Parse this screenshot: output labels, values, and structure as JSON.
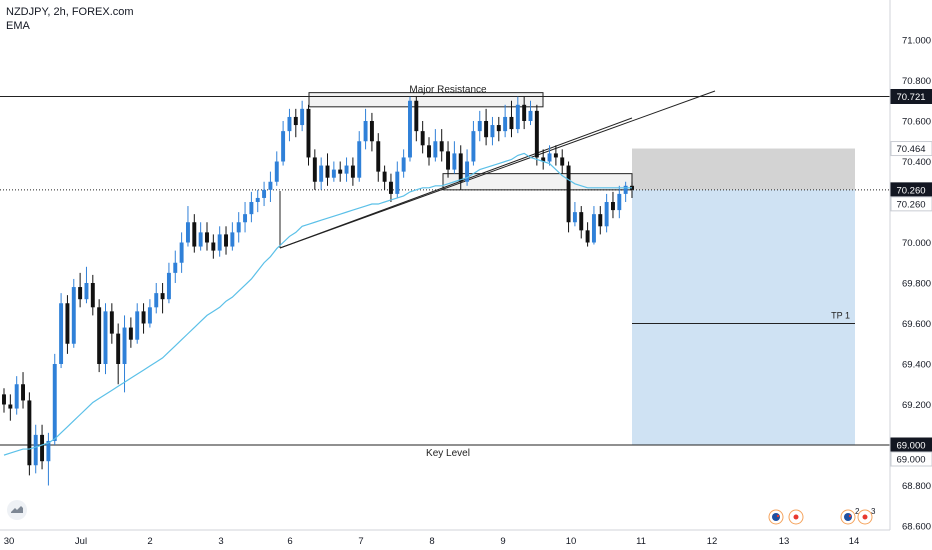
{
  "header": {
    "symbol_line": "NZDJPY, 2h, FOREX.com",
    "indicator": "EMA"
  },
  "colors": {
    "bull": "#2f80d8",
    "bear": "#111111",
    "ema": "#5bc0e8",
    "target_zone": "#cfe2f3",
    "stop_zone": "#d3d3d3",
    "price_tag": "#131722",
    "flag_blue": "#1e50a2",
    "flag_red": "#e8392f",
    "badge_orange": "#f5a35c"
  },
  "chart_data": {
    "type": "candlestick",
    "title": "NZDJPY, 2h, FOREX.com",
    "indicator": "EMA",
    "ylim": [
      68.53,
      71.2
    ],
    "y_ticks": [
      "71.000",
      "70.800",
      "70.600",
      "70.400",
      "70.200",
      "70.000",
      "69.800",
      "69.600",
      "69.400",
      "69.200",
      "69.000",
      "68.800",
      "68.600"
    ],
    "x_ticks": [
      "30",
      "Jul",
      "2",
      "3",
      "6",
      "7",
      "8",
      "9",
      "10",
      "11",
      "12",
      "13",
      "14"
    ],
    "price_tags": [
      {
        "label": "70.721",
        "value": 70.721,
        "style": "dark"
      },
      {
        "label": "70.464",
        "value": 70.464,
        "style": "light"
      },
      {
        "label": "70.260",
        "value": 70.26,
        "style": "dark"
      },
      {
        "label": "70.260",
        "value": 70.26,
        "style": "light",
        "offset": 1
      },
      {
        "label": "69.000",
        "value": 69.0,
        "style": "dark"
      },
      {
        "label": "69.000",
        "value": 69.0,
        "style": "light",
        "offset": 1
      }
    ],
    "annotations": {
      "major_resistance": {
        "label": "Major Resistance",
        "price": 70.721,
        "zone": [
          70.67,
          70.74
        ]
      },
      "key_level": {
        "label": "Key Level",
        "price": 69.0
      },
      "tp1": {
        "label": "TP 1",
        "price": 69.6
      },
      "current_price": 70.26,
      "support_zone": [
        70.26,
        70.34
      ],
      "stop_zone": [
        70.26,
        70.464
      ],
      "target_zone": [
        69.0,
        70.26
      ]
    },
    "candles": [
      [
        69.25,
        69.2,
        69.28,
        69.16
      ],
      [
        69.2,
        69.18,
        69.25,
        69.12
      ],
      [
        69.18,
        69.3,
        69.34,
        69.15
      ],
      [
        69.3,
        69.22,
        69.36,
        69.18
      ],
      [
        69.22,
        68.9,
        69.26,
        68.85
      ],
      [
        68.9,
        69.05,
        69.1,
        68.86
      ],
      [
        69.05,
        68.92,
        69.1,
        68.88
      ],
      [
        68.92,
        69.02,
        69.06,
        68.8
      ],
      [
        69.02,
        69.4,
        69.45,
        69.0
      ],
      [
        69.4,
        69.7,
        69.75,
        69.38
      ],
      [
        69.7,
        69.5,
        69.74,
        69.45
      ],
      [
        69.5,
        69.78,
        69.82,
        69.48
      ],
      [
        69.78,
        69.72,
        69.85,
        69.68
      ],
      [
        69.72,
        69.8,
        69.88,
        69.7
      ],
      [
        69.8,
        69.68,
        69.84,
        69.64
      ],
      [
        69.68,
        69.4,
        69.72,
        69.36
      ],
      [
        69.4,
        69.66,
        69.7,
        69.35
      ],
      [
        69.66,
        69.55,
        69.7,
        69.5
      ],
      [
        69.55,
        69.4,
        69.6,
        69.3
      ],
      [
        69.4,
        69.58,
        69.64,
        69.26
      ],
      [
        69.58,
        69.52,
        69.63,
        69.48
      ],
      [
        69.52,
        69.66,
        69.7,
        69.5
      ],
      [
        69.66,
        69.6,
        69.7,
        69.55
      ],
      [
        69.6,
        69.68,
        69.72,
        69.58
      ],
      [
        69.68,
        69.75,
        69.8,
        69.65
      ],
      [
        69.75,
        69.72,
        69.8,
        69.65
      ],
      [
        69.72,
        69.85,
        69.9,
        69.7
      ],
      [
        69.85,
        69.9,
        69.96,
        69.8
      ],
      [
        69.9,
        70.0,
        70.05,
        69.85
      ],
      [
        70.0,
        70.1,
        70.18,
        69.98
      ],
      [
        70.1,
        69.98,
        70.14,
        69.95
      ],
      [
        69.98,
        70.05,
        70.1,
        69.96
      ],
      [
        70.05,
        70.0,
        70.1,
        69.96
      ],
      [
        70.0,
        69.96,
        70.04,
        69.92
      ],
      [
        69.96,
        70.04,
        70.08,
        69.93
      ],
      [
        70.04,
        69.98,
        70.08,
        69.94
      ],
      [
        69.98,
        70.05,
        70.1,
        69.96
      ],
      [
        70.05,
        70.1,
        70.15,
        70.0
      ],
      [
        70.1,
        70.14,
        70.2,
        70.05
      ],
      [
        70.14,
        70.2,
        70.25,
        70.1
      ],
      [
        70.2,
        70.22,
        70.26,
        70.15
      ],
      [
        70.22,
        70.26,
        70.3,
        70.18
      ],
      [
        70.26,
        70.3,
        70.35,
        70.2
      ],
      [
        70.3,
        70.4,
        70.45,
        70.28
      ],
      [
        70.4,
        70.55,
        70.6,
        70.38
      ],
      [
        70.55,
        70.62,
        70.66,
        70.5
      ],
      [
        70.62,
        70.58,
        70.66,
        70.52
      ],
      [
        70.58,
        70.66,
        70.7,
        70.55
      ],
      [
        70.66,
        70.42,
        70.68,
        70.38
      ],
      [
        70.42,
        70.3,
        70.46,
        70.26
      ],
      [
        70.3,
        70.38,
        70.42,
        70.26
      ],
      [
        70.38,
        70.32,
        70.44,
        70.28
      ],
      [
        70.32,
        70.36,
        70.4,
        70.3
      ],
      [
        70.36,
        70.34,
        70.4,
        70.3
      ],
      [
        70.34,
        70.38,
        70.42,
        70.3
      ],
      [
        70.38,
        70.32,
        70.42,
        70.28
      ],
      [
        70.32,
        70.5,
        70.55,
        70.3
      ],
      [
        70.5,
        70.6,
        70.66,
        70.46
      ],
      [
        70.6,
        70.5,
        70.64,
        70.45
      ],
      [
        70.5,
        70.35,
        70.54,
        70.3
      ],
      [
        70.35,
        70.3,
        70.38,
        70.26
      ],
      [
        70.3,
        70.24,
        70.34,
        70.2
      ],
      [
        70.24,
        70.35,
        70.4,
        70.22
      ],
      [
        70.35,
        70.42,
        70.46,
        70.32
      ],
      [
        70.42,
        70.7,
        70.72,
        70.4
      ],
      [
        70.7,
        70.55,
        70.72,
        70.5
      ],
      [
        70.55,
        70.48,
        70.6,
        70.44
      ],
      [
        70.48,
        70.42,
        70.52,
        70.38
      ],
      [
        70.42,
        70.5,
        70.56,
        70.4
      ],
      [
        70.5,
        70.45,
        70.56,
        70.4
      ],
      [
        70.45,
        70.36,
        70.5,
        70.32
      ],
      [
        70.36,
        70.44,
        70.5,
        70.34
      ],
      [
        70.44,
        70.3,
        70.48,
        70.26
      ],
      [
        70.3,
        70.4,
        70.46,
        70.28
      ],
      [
        70.4,
        70.55,
        70.6,
        70.38
      ],
      [
        70.55,
        70.6,
        70.65,
        70.5
      ],
      [
        70.6,
        70.52,
        70.66,
        70.48
      ],
      [
        70.52,
        70.58,
        70.62,
        70.48
      ],
      [
        70.58,
        70.55,
        70.62,
        70.5
      ],
      [
        70.55,
        70.62,
        70.68,
        70.52
      ],
      [
        70.62,
        70.56,
        70.7,
        70.52
      ],
      [
        70.56,
        70.68,
        70.72,
        70.54
      ],
      [
        70.68,
        70.6,
        70.72,
        70.56
      ],
      [
        70.6,
        70.65,
        70.7,
        70.58
      ],
      [
        70.65,
        70.42,
        70.68,
        70.38
      ],
      [
        70.42,
        70.4,
        70.46,
        70.36
      ],
      [
        70.4,
        70.44,
        70.48,
        70.38
      ],
      [
        70.44,
        70.42,
        70.48,
        70.38
      ],
      [
        70.42,
        70.38,
        70.46,
        70.34
      ],
      [
        70.38,
        70.1,
        70.4,
        70.05
      ],
      [
        70.1,
        70.15,
        70.2,
        70.08
      ],
      [
        70.15,
        70.06,
        70.18,
        70.02
      ],
      [
        70.06,
        70.0,
        70.1,
        69.98
      ],
      [
        70.0,
        70.14,
        70.18,
        69.99
      ],
      [
        70.14,
        70.08,
        70.18,
        70.04
      ],
      [
        70.08,
        70.2,
        70.24,
        70.05
      ],
      [
        70.2,
        70.16,
        70.25,
        70.12
      ],
      [
        70.16,
        70.24,
        70.28,
        70.12
      ],
      [
        70.24,
        70.28,
        70.3,
        70.2
      ],
      [
        70.28,
        70.26,
        70.3,
        70.22
      ]
    ],
    "ema_values": [
      68.95,
      68.96,
      68.97,
      68.98,
      68.98,
      68.99,
      69.0,
      69.01,
      69.03,
      69.06,
      69.09,
      69.12,
      69.15,
      69.18,
      69.21,
      69.23,
      69.25,
      69.27,
      69.29,
      69.31,
      69.33,
      69.35,
      69.37,
      69.39,
      69.41,
      69.43,
      69.46,
      69.49,
      69.52,
      69.55,
      69.58,
      69.61,
      69.64,
      69.66,
      69.68,
      69.71,
      69.73,
      69.76,
      69.79,
      69.82,
      69.86,
      69.9,
      69.93,
      69.97,
      70.0,
      70.03,
      70.05,
      70.08,
      70.09,
      70.1,
      70.11,
      70.12,
      70.13,
      70.14,
      70.15,
      70.16,
      70.17,
      70.18,
      70.19,
      70.19,
      70.2,
      70.21,
      70.22,
      70.23,
      70.25,
      70.26,
      70.27,
      70.27,
      70.28,
      70.28,
      70.29,
      70.3,
      70.31,
      70.32,
      70.34,
      70.36,
      70.37,
      70.38,
      70.39,
      70.4,
      70.41,
      70.43,
      70.44,
      70.42,
      70.41,
      70.4,
      70.39,
      70.36,
      70.33,
      70.31,
      70.29,
      70.28,
      70.27,
      70.27,
      70.27,
      70.27,
      70.27,
      70.27,
      70.27,
      70.27
    ]
  }
}
